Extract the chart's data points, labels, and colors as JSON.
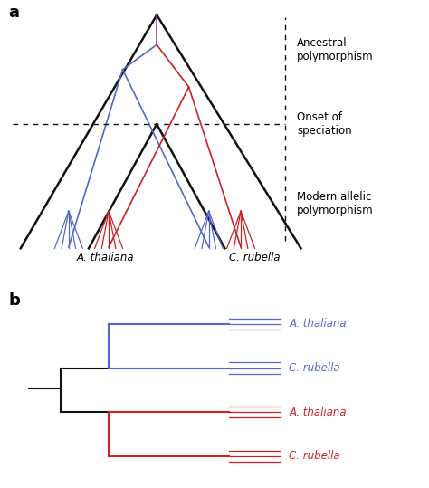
{
  "panel_a": {
    "blue_color": "#5566cc",
    "red_color": "#cc2222",
    "purple_color": "#8844bb",
    "black_color": "#111111",
    "ancestral_label": "Ancestral\npolymorphism",
    "onset_label": "Onset of\nspeciation",
    "modern_label": "Modern allelic\npolymorphism",
    "at_label": "A. thaliana",
    "cr_label": "C. rubella"
  },
  "panel_b": {
    "blue_color": "#5566cc",
    "red_color": "#cc2222",
    "black_color": "#111111",
    "at_label": "A. thaliana",
    "cr_label": "C. rubella"
  },
  "background_color": "#ffffff"
}
